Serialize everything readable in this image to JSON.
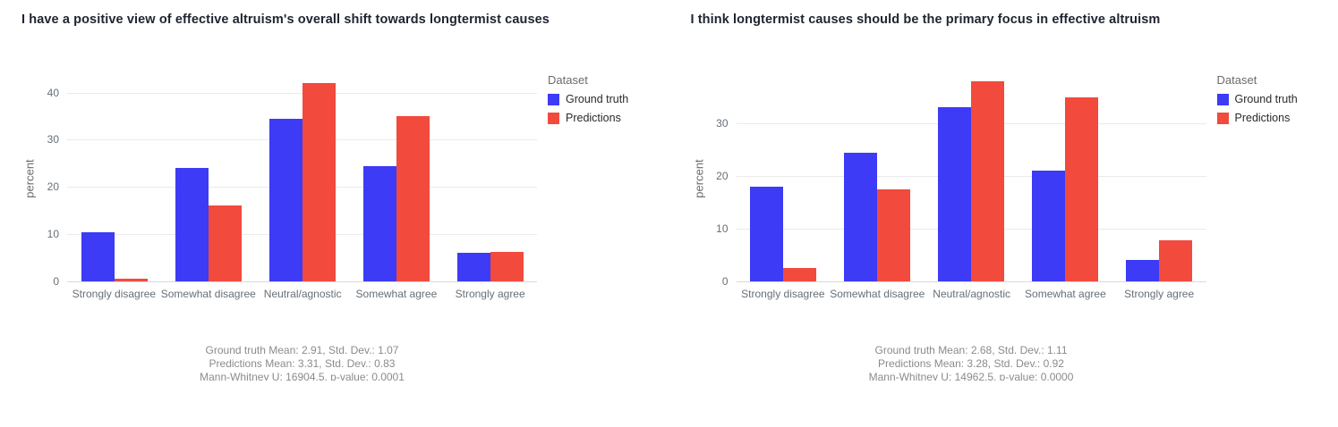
{
  "chart_data": [
    {
      "type": "bar",
      "title": "I have a positive view of effective altruism's overall shift towards longtermist causes",
      "ylabel": "percent",
      "legend_title": "Dataset",
      "legend_position": "right",
      "grid": true,
      "categories": [
        "Strongly disagree",
        "Somewhat disagree",
        "Neutral/agnostic",
        "Somewhat agree",
        "Strongly agree"
      ],
      "series": [
        {
          "name": "Ground truth",
          "color": "#3d3bf5",
          "values": [
            10.5,
            24,
            34.5,
            24.5,
            6
          ]
        },
        {
          "name": "Predictions",
          "color": "#f24a3c",
          "values": [
            0.5,
            16,
            42,
            35,
            6.3
          ]
        }
      ],
      "yticks": [
        0,
        10,
        20,
        30,
        40
      ],
      "ylim": [
        0,
        43.5
      ],
      "caption_lines": [
        "Ground truth Mean: 2.91, Std. Dev.: 1.07",
        "Predictions Mean: 3.31, Std. Dev.: 0.83",
        "Mann-Whitney U: 16904.5, p-value: 0.0001"
      ]
    },
    {
      "type": "bar",
      "title": "I think longtermist causes should be the primary focus in effective altruism",
      "ylabel": "percent",
      "legend_title": "Dataset",
      "legend_position": "right",
      "grid": true,
      "categories": [
        "Strongly disagree",
        "Somewhat disagree",
        "Neutral/agnostic",
        "Somewhat agree",
        "Strongly agree"
      ],
      "series": [
        {
          "name": "Ground truth",
          "color": "#3d3bf5",
          "values": [
            18,
            24.5,
            33,
            21,
            4
          ]
        },
        {
          "name": "Predictions",
          "color": "#f24a3c",
          "values": [
            2.5,
            17.5,
            38,
            35,
            7.8
          ]
        }
      ],
      "yticks": [
        0,
        10,
        20,
        30
      ],
      "ylim": [
        0,
        39
      ],
      "caption_lines": [
        "Ground truth Mean: 2.68, Std. Dev.: 1.11",
        "Predictions Mean: 3.28, Std. Dev.: 0.92",
        "Mann-Whitney U: 14962.5, p-value: 0.0000"
      ]
    }
  ]
}
